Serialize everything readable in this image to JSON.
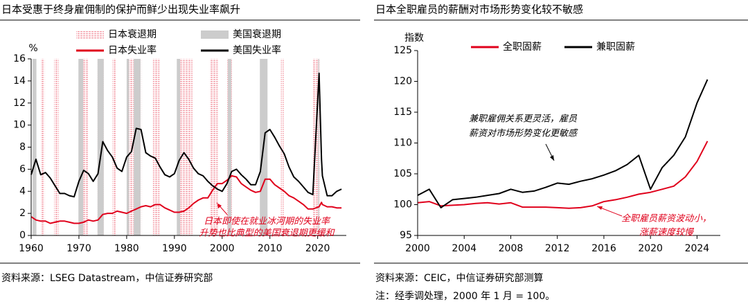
{
  "chart_data": [
    {
      "type": "line",
      "title": "日本受惠于终身雇佣制的保护而鲜少出现失业率飙升",
      "ylabel": "%",
      "xlim": [
        1960,
        2026
      ],
      "xticks": [
        1960,
        1970,
        1980,
        1990,
        2000,
        2010,
        2020
      ],
      "ylim": [
        0,
        16
      ],
      "yticks": [
        0,
        2,
        4,
        6,
        8,
        10,
        12,
        14,
        16
      ],
      "recessions": [
        {
          "name": "日本衰退期",
          "color": "#f4a3ad",
          "hatched": true,
          "periods": [
            [
              1962.0,
              1962.8
            ],
            [
              1964.8,
              1965.8
            ],
            [
              1970.6,
              1971.9
            ],
            [
              1973.9,
              1975.2
            ],
            [
              1977.0,
              1977.8
            ],
            [
              1980.1,
              1983.1
            ],
            [
              1985.5,
              1986.9
            ],
            [
              1991.1,
              1993.8
            ],
            [
              1997.4,
              1999.1
            ],
            [
              2000.9,
              2002.1
            ],
            [
              2008.2,
              2009.3
            ],
            [
              2012.3,
              2012.9
            ],
            [
              2018.9,
              2020.4
            ]
          ]
        },
        {
          "name": "美国衰退期",
          "color": "#cccccc",
          "hatched": false,
          "periods": [
            [
              1960.3,
              1961.1
            ],
            [
              1969.9,
              1970.9
            ],
            [
              1973.9,
              1975.2
            ],
            [
              1980.0,
              1980.5
            ],
            [
              1981.5,
              1982.9
            ],
            [
              1990.5,
              1991.2
            ],
            [
              2001.2,
              2001.9
            ],
            [
              2007.9,
              2009.5
            ],
            [
              2020.1,
              2020.3
            ]
          ]
        }
      ],
      "x": [
        1960,
        1961,
        1962,
        1963,
        1964,
        1965,
        1966,
        1967,
        1968,
        1969,
        1970,
        1971,
        1972,
        1973,
        1974,
        1975,
        1976,
        1977,
        1978,
        1979,
        1980,
        1981,
        1982,
        1983,
        1984,
        1985,
        1986,
        1987,
        1988,
        1989,
        1990,
        1991,
        1992,
        1993,
        1994,
        1995,
        1996,
        1997,
        1998,
        1999,
        2000,
        2001,
        2002,
        2003,
        2004,
        2005,
        2006,
        2007,
        2008,
        2009,
        2010,
        2011,
        2012,
        2013,
        2014,
        2015,
        2016,
        2017,
        2018,
        2019,
        2020.3,
        2020.8,
        2021,
        2022,
        2023,
        2024,
        2025
      ],
      "series": [
        {
          "name": "日本失业率",
          "color": "#e0001b",
          "values": [
            1.7,
            1.4,
            1.3,
            1.3,
            1.1,
            1.2,
            1.3,
            1.3,
            1.2,
            1.1,
            1.1,
            1.2,
            1.4,
            1.3,
            1.4,
            1.9,
            2.0,
            2.0,
            2.2,
            2.1,
            2.0,
            2.2,
            2.4,
            2.6,
            2.7,
            2.6,
            2.8,
            2.8,
            2.5,
            2.3,
            2.1,
            2.1,
            2.2,
            2.5,
            2.9,
            3.2,
            3.4,
            3.4,
            4.1,
            4.7,
            4.7,
            5.0,
            5.4,
            5.3,
            4.7,
            4.4,
            4.1,
            3.9,
            4.0,
            5.1,
            5.1,
            4.6,
            4.3,
            4.0,
            3.6,
            3.4,
            3.1,
            2.8,
            2.4,
            2.4,
            2.6,
            3.0,
            2.8,
            2.6,
            2.6,
            2.5,
            2.5
          ]
        },
        {
          "name": "美国失业率",
          "color": "#000000",
          "values": [
            5.5,
            6.9,
            5.5,
            5.7,
            5.2,
            4.5,
            3.8,
            3.8,
            3.6,
            3.5,
            4.9,
            5.9,
            5.6,
            4.9,
            5.6,
            8.5,
            7.7,
            7.1,
            6.1,
            5.8,
            7.1,
            7.6,
            9.7,
            9.6,
            7.5,
            7.2,
            7.0,
            6.2,
            5.5,
            5.3,
            5.6,
            6.8,
            7.5,
            6.9,
            6.1,
            5.6,
            5.4,
            4.9,
            4.5,
            4.2,
            4.0,
            4.7,
            5.8,
            6.0,
            5.5,
            5.1,
            4.6,
            4.6,
            5.8,
            9.3,
            9.6,
            8.9,
            8.1,
            7.4,
            6.2,
            5.3,
            4.9,
            4.4,
            3.9,
            3.7,
            14.7,
            6.9,
            5.4,
            3.6,
            3.6,
            4.0,
            4.2
          ]
        }
      ],
      "annotations": [
        {
          "lines": [
            "日本即使在就业冰河期的失业率",
            "升势也比典型的美国衰退期更缓和"
          ],
          "color": "#e0001b"
        }
      ],
      "source": "资料来源：LSEG Datastream，中信证券研究部"
    },
    {
      "type": "line",
      "title": "日本全职雇员的薪酬对市场形势变化较不敏感",
      "ylabel": "指数",
      "xlim": [
        2000,
        2026
      ],
      "xticks": [
        2000,
        2004,
        2008,
        2012,
        2016,
        2020,
        2024
      ],
      "ylim": [
        95,
        125
      ],
      "yticks": [
        95,
        100,
        105,
        110,
        115,
        120,
        125
      ],
      "x": [
        2000,
        2001,
        2002,
        2003,
        2004,
        2005,
        2006,
        2007,
        2008,
        2009,
        2010,
        2011,
        2012,
        2013,
        2014,
        2015,
        2016,
        2017,
        2018,
        2019,
        2020,
        2021,
        2022,
        2023,
        2024,
        2024.9
      ],
      "series": [
        {
          "name": "全职固薪",
          "color": "#e0001b",
          "values": [
            100.3,
            100.5,
            99.8,
            99.9,
            100.0,
            100.2,
            100.3,
            100.1,
            100.3,
            99.6,
            99.6,
            99.6,
            99.5,
            99.4,
            99.5,
            99.8,
            100.5,
            100.8,
            101.2,
            101.7,
            102.0,
            102.5,
            103.0,
            104.5,
            107.0,
            110.3
          ]
        },
        {
          "name": "兼职固薪",
          "color": "#000000",
          "values": [
            101.5,
            102.5,
            99.5,
            100.8,
            101.0,
            101.2,
            101.5,
            101.8,
            102.5,
            102.0,
            102.2,
            102.8,
            103.5,
            103.3,
            103.8,
            104.2,
            104.8,
            105.5,
            106.5,
            108.0,
            102.5,
            106.0,
            108.0,
            111.0,
            116.5,
            120.3
          ]
        }
      ],
      "annotations": [
        {
          "lines": [
            "兼职雇佣关系更灵活，雇员",
            "薪资对市场形势变化更敏感"
          ],
          "color": "#000000"
        },
        {
          "lines": [
            "全职雇员薪资波动小，",
            "涨薪速度较慢"
          ],
          "color": "#e0001b"
        }
      ],
      "source": "资料来源：CEIC，中信证券研究部测算",
      "note": "注：经季调处理，2000 年 1 月 = 100。"
    }
  ]
}
